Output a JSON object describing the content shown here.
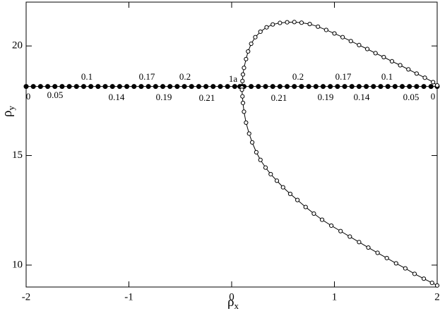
{
  "chart_data": {
    "type": "scatter",
    "xlabel": {
      "base": "ρ",
      "sub": "x"
    },
    "ylabel": {
      "base": "ρ",
      "sub": "y"
    },
    "xlim": [
      -2,
      2
    ],
    "xticks": [
      -2,
      -1,
      0,
      1,
      2
    ],
    "ylim": [
      9,
      22
    ],
    "yticks": [
      10,
      15,
      20
    ],
    "annotations": [
      "1a",
      "0.1",
      "0.17",
      "0.2",
      "0.2",
      "0.17",
      "0.1",
      "0",
      "0.05",
      "0.14",
      "0.19",
      "0.21",
      "0.21",
      "0.19",
      "0.14",
      "0.05",
      "0"
    ],
    "series": [
      {
        "color": "#000000",
        "marker": "filled",
        "x": [
          -2,
          -1.93,
          -1.86,
          -1.79,
          -1.72,
          -1.65,
          -1.58,
          -1.51,
          -1.44,
          -1.37,
          -1.3,
          -1.23,
          -1.16,
          -1.09,
          -1.02,
          -0.95,
          -0.88,
          -0.81,
          -0.74,
          -0.67,
          -0.6,
          -0.53,
          -0.46,
          -0.39,
          -0.32,
          -0.25,
          -0.18,
          -0.11,
          -0.04,
          0.03,
          0.08,
          0.1,
          0.12,
          0.19,
          0.26,
          0.33,
          0.4,
          0.47,
          0.54,
          0.61,
          0.68,
          0.75,
          0.82,
          0.89,
          0.96,
          1.03,
          1.1,
          1.17,
          1.24,
          1.31,
          1.38,
          1.45,
          1.52,
          1.59,
          1.66,
          1.73,
          1.8,
          1.87,
          1.94,
          2
        ],
        "y": [
          18.15,
          18.15,
          18.15,
          18.15,
          18.15,
          18.15,
          18.15,
          18.15,
          18.15,
          18.15,
          18.15,
          18.15,
          18.15,
          18.15,
          18.15,
          18.15,
          18.15,
          18.15,
          18.15,
          18.15,
          18.15,
          18.15,
          18.15,
          18.15,
          18.15,
          18.15,
          18.15,
          18.15,
          18.15,
          18.15,
          18.15,
          18.15,
          18.15,
          18.15,
          18.15,
          18.15,
          18.15,
          18.15,
          18.15,
          18.15,
          18.15,
          18.15,
          18.15,
          18.15,
          18.15,
          18.15,
          18.15,
          18.15,
          18.15,
          18.15,
          18.15,
          18.15,
          18.15,
          18.15,
          18.15,
          18.15,
          18.15,
          18.15,
          18.15,
          18.15
        ]
      },
      {
        "color": "#000000",
        "marker": "open",
        "x": [
          0.1,
          0.105,
          0.11,
          0.12,
          0.14,
          0.16,
          0.19,
          0.23,
          0.28,
          0.34,
          0.4,
          0.47,
          0.54,
          0.61,
          0.68,
          0.76,
          0.84,
          0.92,
          1.0,
          1.08,
          1.16,
          1.24,
          1.32,
          1.4,
          1.48,
          1.56,
          1.64,
          1.72,
          1.8,
          1.88,
          1.96,
          2.0
        ],
        "y": [
          18.1,
          18.4,
          18.7,
          19.0,
          19.4,
          19.75,
          20.1,
          20.4,
          20.65,
          20.85,
          20.98,
          21.05,
          21.08,
          21.09,
          21.06,
          21.0,
          20.88,
          20.73,
          20.57,
          20.4,
          20.22,
          20.04,
          19.86,
          19.67,
          19.49,
          19.3,
          19.12,
          18.93,
          18.74,
          18.55,
          18.35,
          18.2
        ]
      },
      {
        "color": "#000000",
        "marker": "open",
        "x": [
          0.1,
          0.105,
          0.11,
          0.12,
          0.14,
          0.17,
          0.2,
          0.24,
          0.28,
          0.33,
          0.38,
          0.44,
          0.5,
          0.57,
          0.64,
          0.72,
          0.8,
          0.88,
          0.97,
          1.06,
          1.15,
          1.24,
          1.33,
          1.42,
          1.51,
          1.6,
          1.69,
          1.78,
          1.87,
          1.95,
          2.0
        ],
        "y": [
          18.0,
          17.7,
          17.4,
          17.0,
          16.5,
          16.0,
          15.6,
          15.15,
          14.8,
          14.45,
          14.15,
          13.85,
          13.55,
          13.25,
          12.97,
          12.65,
          12.35,
          12.07,
          11.8,
          11.55,
          11.3,
          11.05,
          10.8,
          10.56,
          10.32,
          10.08,
          9.85,
          9.6,
          9.38,
          9.19,
          9.07
        ]
      }
    ]
  }
}
